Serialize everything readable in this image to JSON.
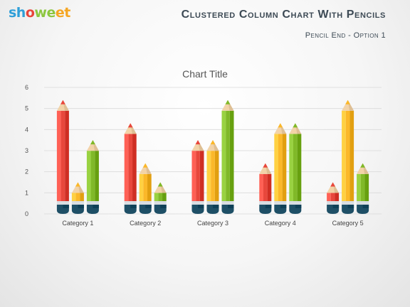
{
  "brand": {
    "part1": "sh",
    "part2": "o",
    "part3": "we",
    "part4": "et"
  },
  "header": {
    "title": "Clustered Column Chart With Pencils",
    "subtitle": "Pencil End - Option 1"
  },
  "colors": {
    "red": "#e8473c",
    "yellow": "#fbb829",
    "green": "#80b928",
    "cap": "#1e4f66",
    "wood": "#f2d3a8",
    "band": "#d8dde2"
  },
  "chart_data": {
    "type": "bar",
    "title": "Chart Title",
    "categories": [
      "Category 1",
      "Category 2",
      "Category 3",
      "Category 4",
      "Category 5"
    ],
    "series": [
      {
        "color": "red",
        "values": [
          5.4,
          4.3,
          3.5,
          2.4,
          1.5
        ]
      },
      {
        "color": "yellow",
        "values": [
          1.5,
          2.4,
          3.5,
          4.3,
          5.4
        ]
      },
      {
        "color": "green",
        "values": [
          3.5,
          1.5,
          5.4,
          4.3,
          2.4
        ]
      }
    ],
    "ylim": [
      0,
      6
    ],
    "yticks": [
      "0",
      "1",
      "2",
      "3",
      "4",
      "5",
      "6"
    ],
    "grid": true
  }
}
